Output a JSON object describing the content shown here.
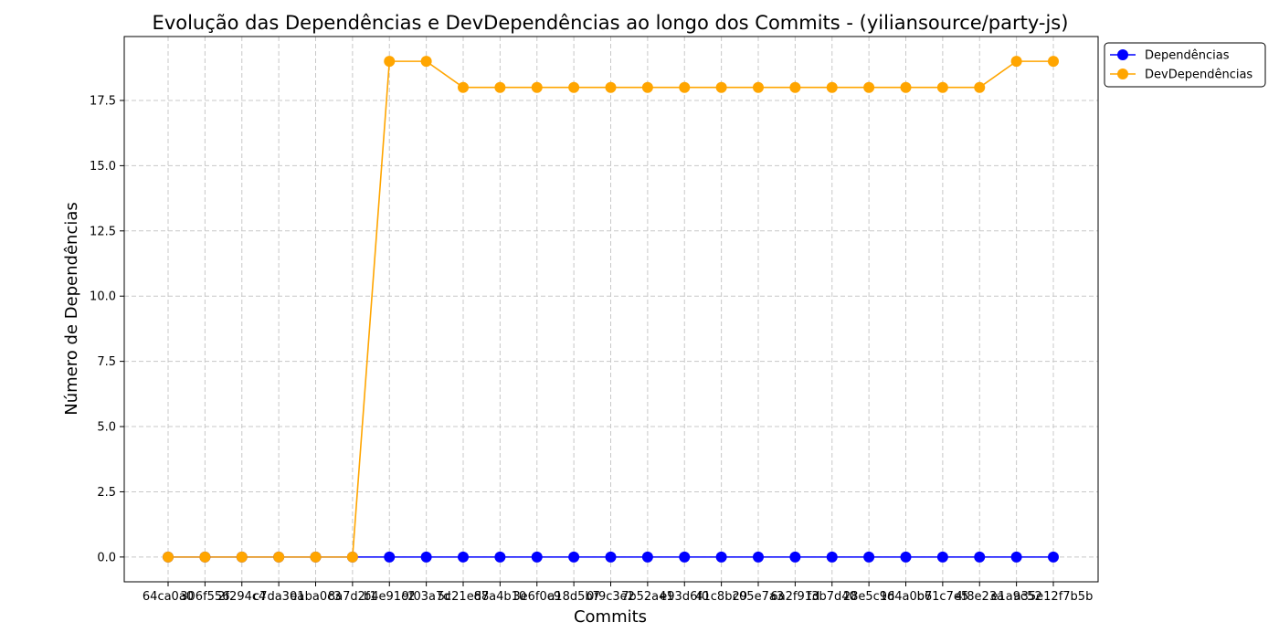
{
  "chart_data": {
    "type": "line",
    "title": "Evolução das Dependências e DevDependências ao longo dos Commits - (yiliansource/party-js)",
    "xlabel": "Commits",
    "ylabel": "Número de Dependências",
    "categories": [
      "64ca0a0",
      "306f556",
      "2f294c4",
      "c7da30a",
      "e1ba0c3",
      "8a7d2f1",
      "b4e91c2",
      "9f03a7d",
      "5c21e88",
      "d7a4b10",
      "3e6f0c9",
      "a18d5b7",
      "0f9c3e2",
      "7b52a41",
      "e93d6f0",
      "41c8b29",
      "c05e7a3",
      "6a2f91d",
      "f3b7d40",
      "28e5c16",
      "9d4a0b7",
      "b61c7e5",
      "4f8e23a",
      "e1a9c52",
      "a35e12f7b5b"
    ],
    "series": [
      {
        "name": "Dependências",
        "color": "#0000ff",
        "values": [
          0,
          0,
          0,
          0,
          0,
          0,
          0,
          0,
          0,
          0,
          0,
          0,
          0,
          0,
          0,
          0,
          0,
          0,
          0,
          0,
          0,
          0,
          0,
          0,
          0
        ]
      },
      {
        "name": "DevDependências",
        "color": "#ffa500",
        "values": [
          0,
          0,
          0,
          0,
          0,
          0,
          19,
          19,
          18,
          18,
          18,
          18,
          18,
          18,
          18,
          18,
          18,
          18,
          18,
          18,
          18,
          18,
          18,
          19,
          19
        ]
      }
    ],
    "ylim": [
      -0.95,
      19.95
    ],
    "yticks": [
      "0.0",
      "2.5",
      "5.0",
      "7.5",
      "10.0",
      "12.5",
      "15.0",
      "17.5"
    ],
    "grid": true,
    "legend_position": "outside-top-right"
  }
}
